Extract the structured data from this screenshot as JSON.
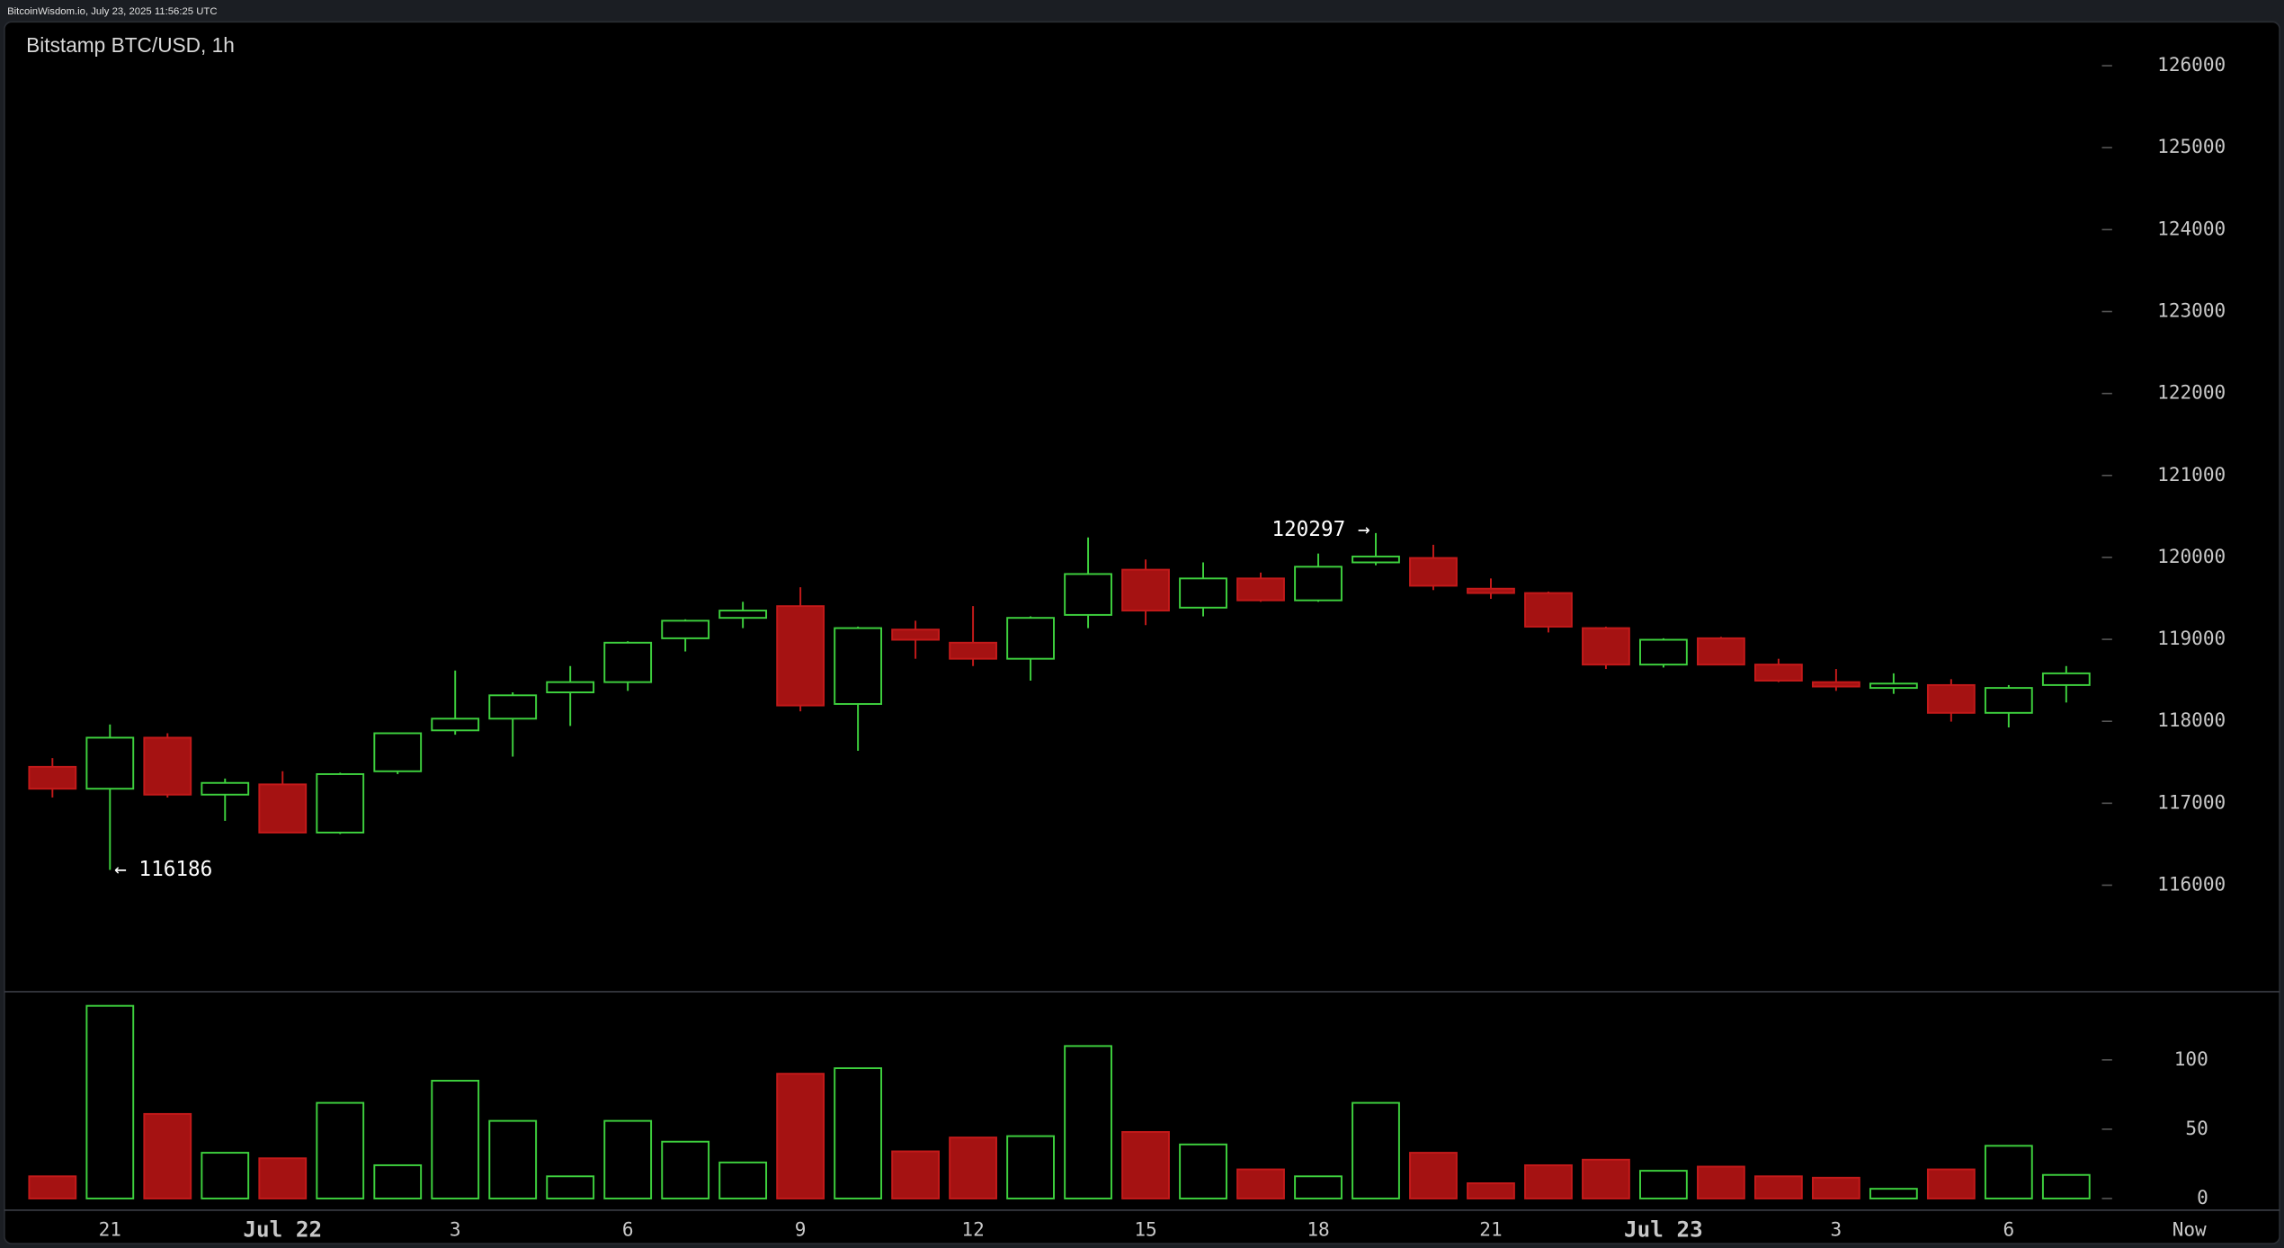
{
  "header": {
    "source": "BitcoinWisdom.io, July 23, 2025 11:56:25 UTC"
  },
  "chart_data": {
    "type": "candlestick",
    "title": "Bitstamp BTC/USD, 1h",
    "categories": [
      null,
      "21",
      null,
      null,
      "Jul 22",
      null,
      null,
      "3",
      null,
      null,
      "6",
      null,
      null,
      "9",
      null,
      null,
      "12",
      null,
      null,
      "15",
      null,
      null,
      "18",
      null,
      null,
      "21",
      null,
      null,
      "Jul 23",
      null,
      null,
      "3",
      null,
      null,
      "6",
      null
    ],
    "now_label": "Now",
    "open": [
      117444,
      117177,
      117800,
      117105,
      117230,
      116642,
      117390,
      117889,
      118032,
      118353,
      118478,
      119013,
      119262,
      119405,
      118211,
      119119,
      118959,
      118763,
      119298,
      119850,
      119387,
      119743,
      119476,
      119939,
      119993,
      119618,
      119565,
      119137,
      118692,
      119013,
      118692,
      118478,
      118407,
      118442,
      118103,
      118442
    ],
    "high": [
      117551,
      117961,
      117854,
      117301,
      117390,
      117373,
      117854,
      118620,
      118353,
      118674,
      118977,
      119244,
      119458,
      119636,
      119155,
      119227,
      119405,
      119280,
      120243,
      119975,
      119939,
      119815,
      120047,
      120297,
      120154,
      119743,
      119583,
      119155,
      119013,
      119031,
      118763,
      118638,
      118585,
      118514,
      118442,
      118674
    ],
    "low": [
      117070,
      116186,
      117070,
      116785,
      116642,
      116624,
      117355,
      117836,
      117569,
      117943,
      118371,
      118852,
      119137,
      118121,
      117640,
      118763,
      118674,
      118496,
      119137,
      119173,
      119280,
      119458,
      119458,
      119904,
      119601,
      119494,
      119084,
      118638,
      118656,
      118692,
      118478,
      118371,
      118335,
      117996,
      117925,
      118229
    ],
    "close": [
      117177,
      117800,
      117105,
      117248,
      116642,
      117355,
      117854,
      118032,
      118317,
      118478,
      118959,
      119227,
      119351,
      118193,
      119137,
      118995,
      118763,
      119262,
      119797,
      119351,
      119743,
      119476,
      119886,
      120011,
      119654,
      119565,
      119155,
      118692,
      118995,
      118692,
      118496,
      118424,
      118460,
      118103,
      118407,
      118585
    ],
    "volume": [
      16,
      139,
      61,
      33,
      29,
      69,
      24,
      85,
      56,
      16,
      56,
      41,
      26,
      90,
      94,
      34,
      44,
      45,
      110,
      48,
      39,
      21,
      16,
      69,
      33,
      11,
      24,
      28,
      20,
      23,
      16,
      15,
      7,
      21,
      38,
      17
    ],
    "up_color": "#3ed13e",
    "down_color": "#a51212",
    "ylim": [
      114700,
      126500
    ],
    "yticks": [
      116000,
      117000,
      118000,
      119000,
      120000,
      121000,
      122000,
      123000,
      124000,
      125000,
      126000
    ],
    "volume_ylim": [
      0,
      145
    ],
    "volume_ticks": [
      0,
      50,
      100
    ],
    "annotations": [
      {
        "text": "← 116186",
        "value": 116186
      },
      {
        "text": "120297 →",
        "value": 120297
      }
    ]
  }
}
